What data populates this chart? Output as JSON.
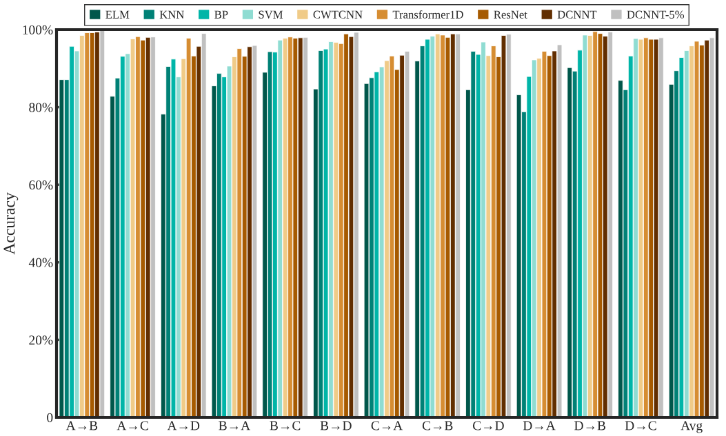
{
  "chart_data": {
    "type": "bar",
    "ylabel": "Accuracy",
    "categories": [
      "A→B",
      "A→C",
      "A→D",
      "B→A",
      "B→C",
      "B→D",
      "C→A",
      "C→B",
      "C→D",
      "D→A",
      "D→B",
      "D→C",
      "Avg"
    ],
    "series": [
      {
        "name": "ELM",
        "color": "#00574b",
        "values": [
          87.1,
          82.8,
          78.2,
          85.5,
          89.0,
          84.7,
          86.1,
          91.9,
          84.5,
          83.2,
          90.2,
          86.9,
          85.9
        ]
      },
      {
        "name": "KNN",
        "color": "#008176",
        "values": [
          87.1,
          87.5,
          90.5,
          88.7,
          94.3,
          94.6,
          87.6,
          95.8,
          94.4,
          78.8,
          89.3,
          84.5,
          89.4
        ]
      },
      {
        "name": "BP",
        "color": "#00b5a8",
        "values": [
          95.7,
          93.1,
          92.4,
          87.8,
          94.2,
          95.0,
          89.1,
          97.5,
          93.6,
          87.9,
          94.7,
          93.2,
          92.8
        ]
      },
      {
        "name": "SVM",
        "color": "#8fdcd2",
        "values": [
          94.5,
          93.8,
          87.8,
          90.6,
          97.3,
          96.9,
          90.4,
          98.3,
          96.8,
          92.2,
          98.6,
          97.7,
          94.6
        ]
      },
      {
        "name": "CWTCNN",
        "color": "#f0cb88",
        "values": [
          98.5,
          97.6,
          92.5,
          93.0,
          97.8,
          96.7,
          92.0,
          98.9,
          93.3,
          92.6,
          98.5,
          97.5,
          95.8
        ]
      },
      {
        "name": "Transformer1D",
        "color": "#d68d32",
        "values": [
          99.2,
          98.2,
          97.8,
          95.1,
          98.1,
          96.4,
          93.2,
          98.6,
          95.8,
          94.4,
          99.5,
          97.9,
          97.0
        ]
      },
      {
        "name": "ResNet",
        "color": "#a65a00",
        "values": [
          99.2,
          97.3,
          93.2,
          93.1,
          97.8,
          98.9,
          89.7,
          98.0,
          93.0,
          93.3,
          99.0,
          97.5,
          96.0
        ]
      },
      {
        "name": "DCNNT",
        "color": "#622e00",
        "values": [
          99.4,
          98.0,
          95.7,
          95.6,
          97.9,
          98.2,
          93.4,
          98.9,
          98.5,
          94.5,
          98.3,
          97.5,
          97.3
        ]
      },
      {
        "name": "DCNNT-5%",
        "color": "#c0c0c0",
        "values": [
          99.9,
          98.1,
          99.0,
          95.9,
          98.0,
          99.3,
          94.4,
          98.9,
          98.8,
          96.1,
          99.4,
          97.9,
          97.9
        ]
      }
    ],
    "ylim": [
      0,
      100
    ],
    "yticks": [
      0,
      {
        "value": 20,
        "label": "20%"
      },
      {
        "value": 40,
        "label": "40%"
      },
      {
        "value": 60,
        "label": "60%"
      },
      {
        "value": 80,
        "label": "80%"
      },
      {
        "value": 100,
        "label": "100%"
      }
    ],
    "legend": "top",
    "grid": false
  }
}
